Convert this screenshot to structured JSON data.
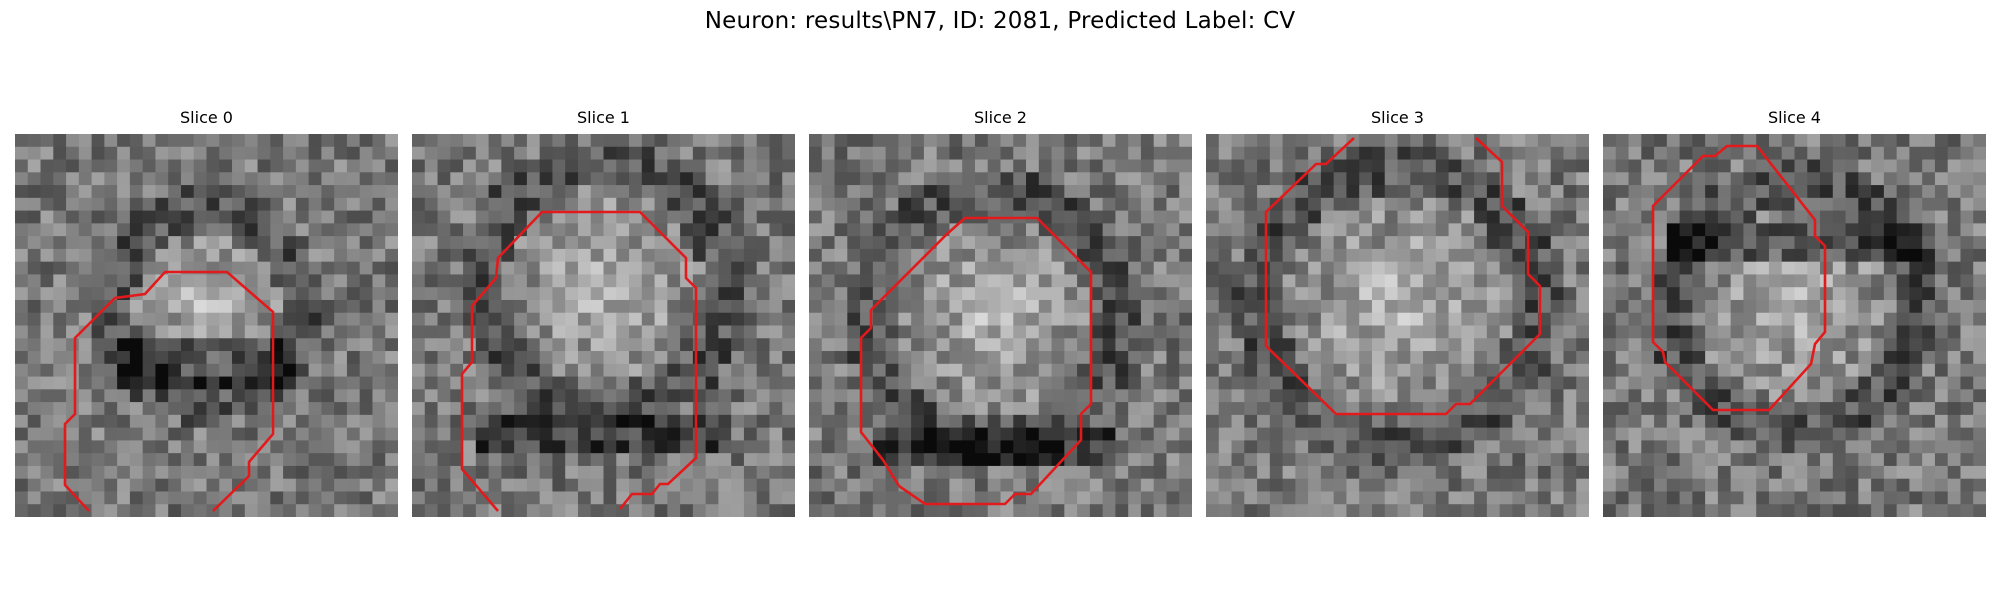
{
  "figure": {
    "title": "Neuron: results\\PN7, ID: 2081, Predicted Label: CV",
    "contour_color": "#e31a1c"
  },
  "panels": [
    {
      "title": "Slice 0",
      "seed": 11
    },
    {
      "title": "Slice 1",
      "seed": 23
    },
    {
      "title": "Slice 2",
      "seed": 37
    },
    {
      "title": "Slice 3",
      "seed": 51
    },
    {
      "title": "Slice 4",
      "seed": 67
    }
  ]
}
